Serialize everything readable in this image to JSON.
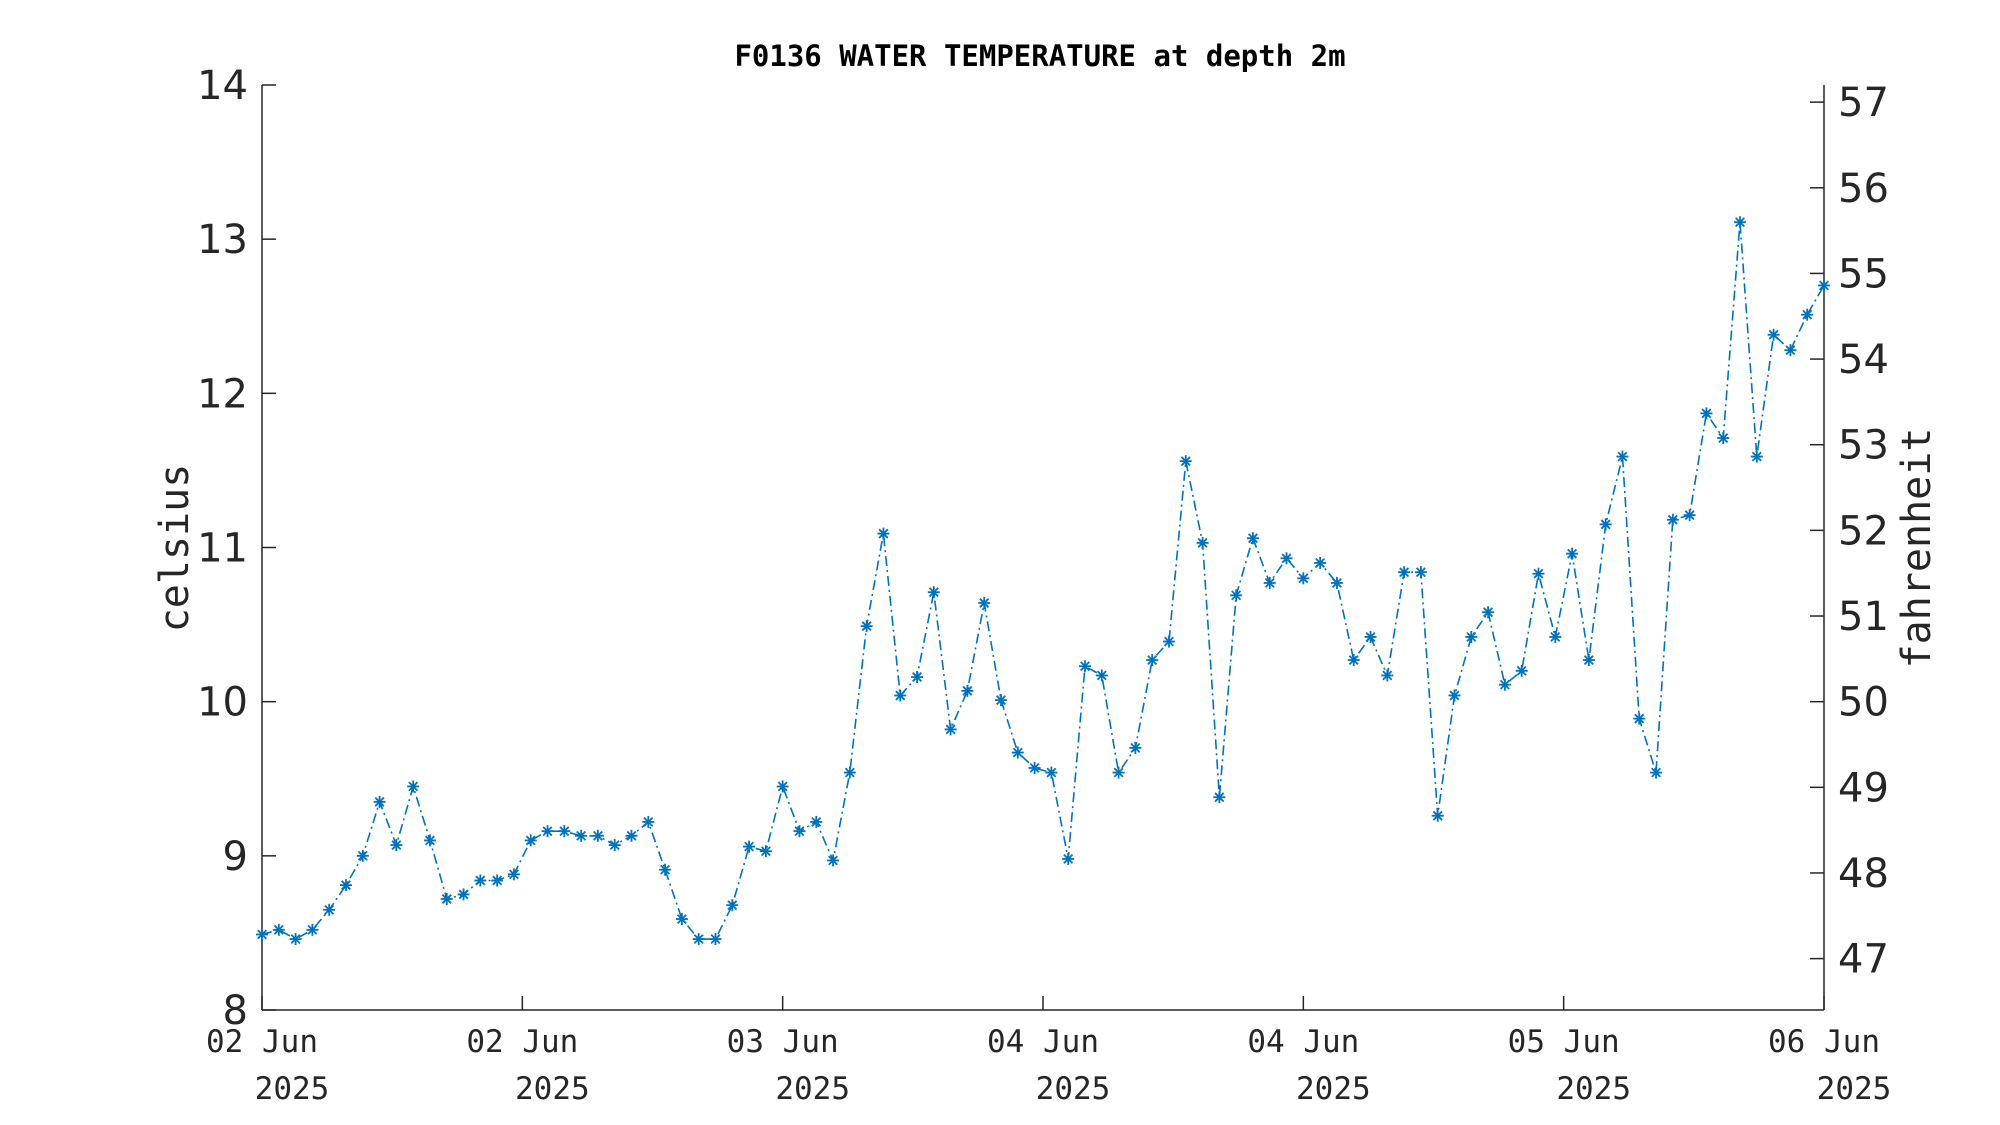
{
  "chart_data": {
    "type": "line",
    "title": "F0136 WATER TEMPERATURE at depth 2m",
    "ylabel": "celsius",
    "y2label": "fahrenheit",
    "ylim": [
      8,
      14
    ],
    "y2lim": [
      46.4,
      57.2
    ],
    "yticks": [
      "8",
      "9",
      "10",
      "11",
      "12",
      "13",
      "14"
    ],
    "y2ticks": [
      "47",
      "48",
      "49",
      "50",
      "51",
      "52",
      "53",
      "54",
      "55",
      "56",
      "57"
    ],
    "xticks": [
      {
        "line1": "02 Jun",
        "line2": "2025"
      },
      {
        "line1": "02 Jun",
        "line2": "2025"
      },
      {
        "line1": "03 Jun",
        "line2": "2025"
      },
      {
        "line1": "04 Jun",
        "line2": "2025"
      },
      {
        "line1": "04 Jun",
        "line2": "2025"
      },
      {
        "line1": "05 Jun",
        "line2": "2025"
      },
      {
        "line1": "06 Jun",
        "line2": "2025"
      }
    ],
    "grid": false,
    "color": "#0072BD",
    "marker": "asterisk",
    "linestyle": "dash-dot",
    "series": [
      {
        "values": [
          8.49,
          8.52,
          8.46,
          8.52,
          8.65,
          8.81,
          9.0,
          9.35,
          9.07,
          9.45,
          9.1,
          8.72,
          8.75,
          8.84,
          8.84,
          8.88,
          9.1,
          9.16,
          9.16,
          9.13,
          9.13,
          9.07,
          9.13,
          9.22,
          8.91,
          8.59,
          8.46,
          8.46,
          8.68,
          9.06,
          9.03,
          9.45,
          9.16,
          9.22,
          8.97,
          9.54,
          10.49,
          11.09,
          10.04,
          10.16,
          10.71,
          9.82,
          10.07,
          10.64,
          10.01,
          9.67,
          9.57,
          9.54,
          8.98,
          10.23,
          10.17,
          9.54,
          9.7,
          10.27,
          10.39,
          11.56,
          11.03,
          9.38,
          10.69,
          11.06,
          10.77,
          10.93,
          10.8,
          10.9,
          10.77,
          10.27,
          10.42,
          10.17,
          10.84,
          10.84,
          9.26,
          10.04,
          10.42,
          10.58,
          10.11,
          10.2,
          10.83,
          10.42,
          10.96,
          10.27,
          11.15,
          11.59,
          9.89,
          9.54,
          11.18,
          11.21,
          11.87,
          11.71,
          13.11,
          11.59,
          12.38,
          12.28,
          12.51,
          12.7
        ]
      }
    ]
  }
}
